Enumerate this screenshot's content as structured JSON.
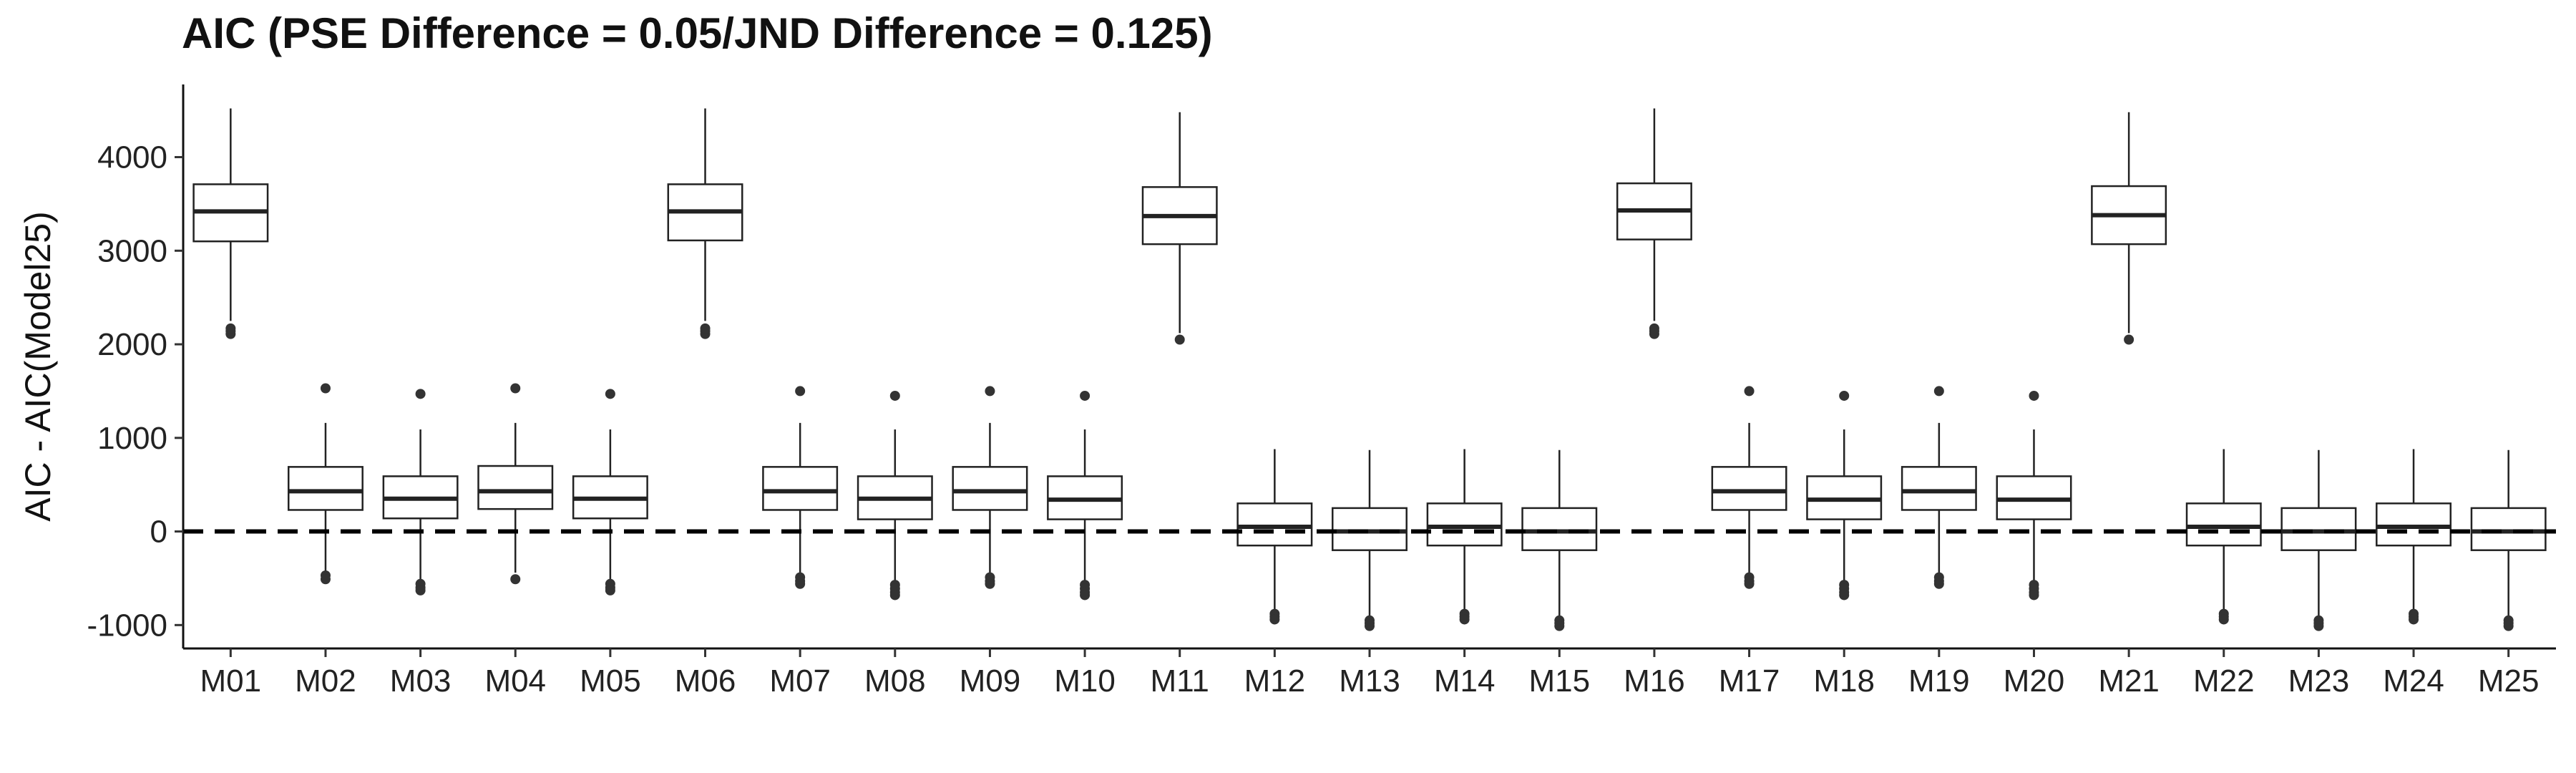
{
  "chart_data": {
    "type": "box",
    "title": "AIC (PSE Difference = 0.05/JND Difference = 0.125)",
    "xlabel": "",
    "ylabel": "AIC - AIC(Model25)",
    "ylim": [
      -1250,
      4700
    ],
    "yticks": [
      -1000,
      0,
      1000,
      2000,
      3000,
      4000
    ],
    "reference_line": {
      "y": 0,
      "style": "dashed"
    },
    "grid": false,
    "categories": [
      "M01",
      "M02",
      "M03",
      "M04",
      "M05",
      "M06",
      "M07",
      "M08",
      "M09",
      "M10",
      "M11",
      "M12",
      "M13",
      "M14",
      "M15",
      "M16",
      "M17",
      "M18",
      "M19",
      "M20",
      "M21",
      "M22",
      "M23",
      "M24",
      "M25"
    ],
    "boxes": [
      {
        "low": 2250,
        "q1": 3100,
        "median": 3420,
        "q3": 3710,
        "high": 4520,
        "outliers": [
          2110,
          2140,
          2170
        ]
      },
      {
        "low": -440,
        "q1": 230,
        "median": 430,
        "q3": 690,
        "high": 1160,
        "outliers": [
          1530,
          -470,
          -510
        ]
      },
      {
        "low": -520,
        "q1": 140,
        "median": 350,
        "q3": 590,
        "high": 1090,
        "outliers": [
          1470,
          -560,
          -600,
          -630
        ]
      },
      {
        "low": -440,
        "q1": 240,
        "median": 430,
        "q3": 700,
        "high": 1160,
        "outliers": [
          1530,
          -510
        ]
      },
      {
        "low": -520,
        "q1": 140,
        "median": 350,
        "q3": 590,
        "high": 1090,
        "outliers": [
          1470,
          -560,
          -600,
          -630
        ]
      },
      {
        "low": 2250,
        "q1": 3110,
        "median": 3420,
        "q3": 3710,
        "high": 4520,
        "outliers": [
          2110,
          2140,
          2170
        ]
      },
      {
        "low": -440,
        "q1": 230,
        "median": 430,
        "q3": 690,
        "high": 1160,
        "outliers": [
          1500,
          -490,
          -530,
          -560
        ]
      },
      {
        "low": -520,
        "q1": 130,
        "median": 350,
        "q3": 590,
        "high": 1090,
        "outliers": [
          1450,
          -570,
          -610,
          -650,
          -680
        ]
      },
      {
        "low": -440,
        "q1": 230,
        "median": 430,
        "q3": 690,
        "high": 1160,
        "outliers": [
          1500,
          -490,
          -530,
          -560
        ]
      },
      {
        "low": -520,
        "q1": 130,
        "median": 340,
        "q3": 590,
        "high": 1090,
        "outliers": [
          1450,
          -570,
          -610,
          -650,
          -680
        ]
      },
      {
        "low": 2120,
        "q1": 3070,
        "median": 3370,
        "q3": 3680,
        "high": 4480,
        "outliers": [
          2050
        ]
      },
      {
        "low": -840,
        "q1": -150,
        "median": 50,
        "q3": 300,
        "high": 880,
        "outliers": [
          -880,
          -910,
          -940
        ]
      },
      {
        "low": -920,
        "q1": -200,
        "median": 0,
        "q3": 250,
        "high": 870,
        "outliers": [
          -950,
          -980,
          -1010
        ]
      },
      {
        "low": -840,
        "q1": -150,
        "median": 50,
        "q3": 300,
        "high": 880,
        "outliers": [
          -880,
          -910,
          -940
        ]
      },
      {
        "low": -920,
        "q1": -200,
        "median": 0,
        "q3": 250,
        "high": 870,
        "outliers": [
          -950,
          -980,
          -1010
        ]
      },
      {
        "low": 2250,
        "q1": 3120,
        "median": 3430,
        "q3": 3720,
        "high": 4520,
        "outliers": [
          2110,
          2140,
          2170
        ]
      },
      {
        "low": -440,
        "q1": 230,
        "median": 430,
        "q3": 690,
        "high": 1160,
        "outliers": [
          1500,
          -490,
          -530,
          -560
        ]
      },
      {
        "low": -520,
        "q1": 130,
        "median": 340,
        "q3": 590,
        "high": 1090,
        "outliers": [
          1450,
          -570,
          -610,
          -650,
          -680
        ]
      },
      {
        "low": -440,
        "q1": 230,
        "median": 430,
        "q3": 690,
        "high": 1160,
        "outliers": [
          1500,
          -490,
          -530,
          -560
        ]
      },
      {
        "low": -520,
        "q1": 130,
        "median": 340,
        "q3": 590,
        "high": 1090,
        "outliers": [
          1450,
          -570,
          -610,
          -650,
          -680
        ]
      },
      {
        "low": 2120,
        "q1": 3070,
        "median": 3380,
        "q3": 3690,
        "high": 4480,
        "outliers": [
          2050
        ]
      },
      {
        "low": -840,
        "q1": -150,
        "median": 50,
        "q3": 300,
        "high": 880,
        "outliers": [
          -880,
          -910,
          -940
        ]
      },
      {
        "low": -920,
        "q1": -200,
        "median": 0,
        "q3": 250,
        "high": 870,
        "outliers": [
          -950,
          -980,
          -1010
        ]
      },
      {
        "low": -840,
        "q1": -150,
        "median": 50,
        "q3": 300,
        "high": 880,
        "outliers": [
          -880,
          -910,
          -940
        ]
      },
      {
        "low": -920,
        "q1": -200,
        "median": 0,
        "q3": 250,
        "high": 870,
        "outliers": [
          -950,
          -980,
          -1010
        ]
      }
    ]
  }
}
